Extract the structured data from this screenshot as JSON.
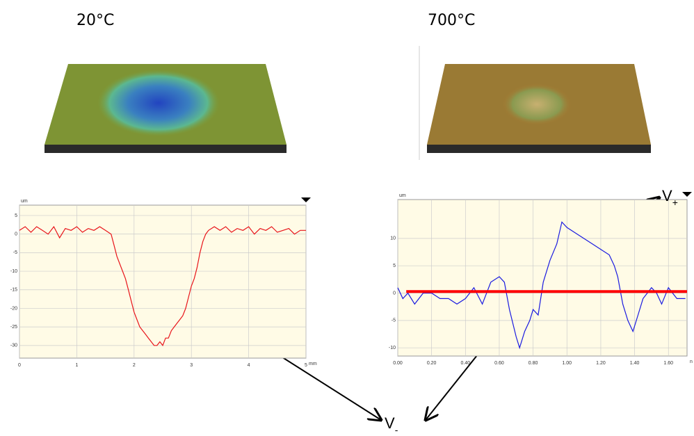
{
  "chart_data": [
    {
      "type": "line",
      "title": "20°C",
      "ylabel": "um",
      "xlabel": "mm",
      "xlim": [
        0,
        5
      ],
      "xticks": [
        0,
        1,
        2,
        3,
        4,
        5
      ],
      "ylim": [
        -33.4,
        7.8
      ],
      "yticks": [
        5,
        0,
        -5,
        -10,
        -15,
        -20,
        -25,
        -30
      ],
      "grid": true,
      "series": [
        {
          "color": "#e8141a",
          "x": [
            0,
            0.1,
            0.2,
            0.3,
            0.4,
            0.5,
            0.6,
            0.7,
            0.8,
            0.9,
            1.0,
            1.1,
            1.2,
            1.3,
            1.4,
            1.5,
            1.6,
            1.65,
            1.7,
            1.75,
            1.8,
            1.85,
            1.9,
            1.95,
            2.0,
            2.05,
            2.1,
            2.15,
            2.2,
            2.25,
            2.3,
            2.35,
            2.4,
            2.45,
            2.5,
            2.55,
            2.6,
            2.65,
            2.7,
            2.75,
            2.8,
            2.85,
            2.9,
            2.95,
            3.0,
            3.05,
            3.1,
            3.15,
            3.2,
            3.25,
            3.3,
            3.4,
            3.5,
            3.6,
            3.7,
            3.8,
            3.9,
            4.0,
            4.1,
            4.2,
            4.3,
            4.4,
            4.5,
            4.6,
            4.7,
            4.8,
            4.9,
            5.0
          ],
          "values": [
            1,
            2,
            0.5,
            2,
            1,
            0,
            2,
            -1,
            1.5,
            1,
            2,
            0.5,
            1.5,
            1,
            2,
            1,
            0,
            -3,
            -6,
            -8,
            -10,
            -12,
            -15,
            -18,
            -21,
            -23,
            -25,
            -26,
            -27,
            -28,
            -29,
            -30,
            -30,
            -29,
            -30,
            -28,
            -28,
            -26,
            -25,
            -24,
            -23,
            -22,
            -20,
            -17,
            -14,
            -12,
            -9,
            -5,
            -2,
            0,
            1,
            2,
            1,
            2,
            0.5,
            1.5,
            1,
            2,
            0,
            1.5,
            1,
            2,
            0.5,
            1,
            1.5,
            0,
            1,
            1
          ]
        }
      ]
    },
    {
      "type": "line",
      "title": "700°C",
      "ylabel": "um",
      "xlabel": "n",
      "xlim": [
        0,
        1.71
      ],
      "xticks": [
        {
          "value": 0,
          "label": "0.00"
        },
        {
          "value": 0.2,
          "label": "0.20"
        },
        {
          "value": 0.4,
          "label": "0.40"
        },
        {
          "value": 0.6,
          "label": "0.60"
        },
        {
          "value": 0.8,
          "label": "0.80"
        },
        {
          "value": 1.0,
          "label": "1.00"
        },
        {
          "value": 1.2,
          "label": "1.20"
        },
        {
          "value": 1.4,
          "label": "1.40"
        },
        {
          "value": 1.6,
          "label": "1.60"
        }
      ],
      "ylim": [
        -11.5,
        17.1
      ],
      "yticks": [
        10,
        5,
        0,
        -5,
        -10
      ],
      "grid": true,
      "series": [
        {
          "color": "#1a1ae0",
          "x": [
            0,
            0.03,
            0.06,
            0.1,
            0.15,
            0.2,
            0.25,
            0.3,
            0.35,
            0.4,
            0.45,
            0.5,
            0.55,
            0.6,
            0.63,
            0.66,
            0.7,
            0.72,
            0.75,
            0.78,
            0.8,
            0.83,
            0.86,
            0.9,
            0.94,
            0.97,
            1.0,
            1.05,
            1.1,
            1.15,
            1.2,
            1.25,
            1.28,
            1.3,
            1.33,
            1.36,
            1.39,
            1.42,
            1.45,
            1.5,
            1.53,
            1.56,
            1.6,
            1.65,
            1.7
          ],
          "values": [
            1,
            -1,
            0,
            -2,
            0,
            0,
            -1,
            -1,
            -2,
            -1,
            1,
            -2,
            2,
            3,
            2,
            -3,
            -8,
            -10,
            -7,
            -5,
            -3,
            -4,
            2,
            6,
            9,
            13,
            12,
            11,
            10,
            9,
            8,
            7,
            5,
            3,
            -2,
            -5,
            -7,
            -4,
            -1,
            1,
            0,
            -2,
            1,
            -1,
            -1
          ]
        },
        {
          "color": "#ff0000",
          "x": [
            0.05,
            1.71
          ],
          "values": [
            0.3,
            0.3
          ]
        }
      ],
      "annotations": [
        {
          "base": "V",
          "subscript": "+"
        },
        {
          "base": "V",
          "subscript": "-"
        }
      ]
    }
  ]
}
